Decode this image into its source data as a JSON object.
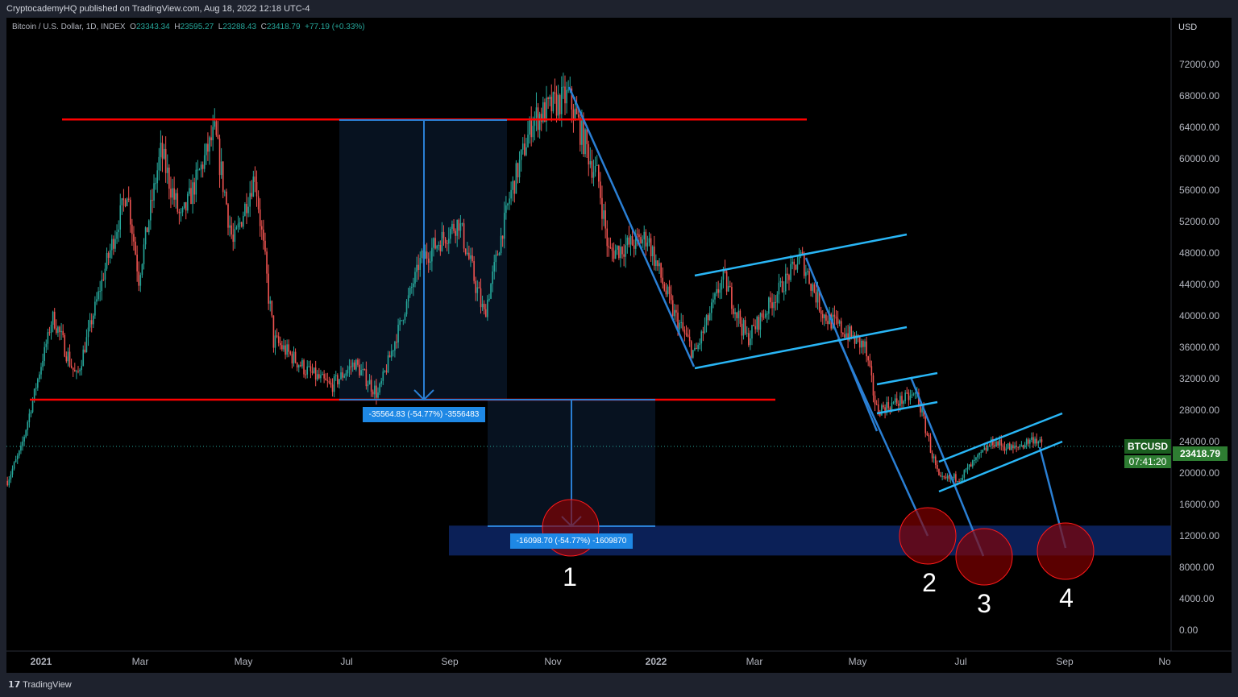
{
  "header": {
    "published": "CryptocademyHQ published on TradingView.com, Aug 18, 2022 12:18 UTC-4"
  },
  "legend": {
    "symbol": "Bitcoin / U.S. Dollar, 1D, INDEX",
    "open_label": "O",
    "open": "23343.34",
    "high_label": "H",
    "high": "23595.27",
    "low_label": "L",
    "low": "23288.43",
    "close_label": "C",
    "close": "23418.79",
    "change": "+77.19 (+0.33%)"
  },
  "price_tag": {
    "symbol": "BTCUSD",
    "price": "23418.79",
    "countdown": "07:41:20"
  },
  "currency": "USD",
  "measures": [
    {
      "label": "-35564.83 (-54.77%) -3556483"
    },
    {
      "label": "-16098.70 (-54.77%) -1609870"
    }
  ],
  "targets": [
    "1",
    "2",
    "3",
    "4"
  ],
  "footer": {
    "brand": "TradingView"
  },
  "colors": {
    "up": "#26a69a",
    "down": "#ef5350",
    "resistance": "#ff0000",
    "trend": "#2a7fd4",
    "channel": "#29b6f6",
    "zone": "#0c2461",
    "target": "#8b0000"
  },
  "chart_data": {
    "type": "candlestick",
    "ylabel": "USD",
    "ylim": [
      0,
      72000
    ],
    "yticks": [
      "72000.00",
      "68000.00",
      "64000.00",
      "60000.00",
      "56000.00",
      "52000.00",
      "48000.00",
      "44000.00",
      "40000.00",
      "36000.00",
      "32000.00",
      "28000.00",
      "24000.00",
      "20000.00",
      "16000.00",
      "12000.00",
      "8000.00",
      "4000.00",
      "0.00"
    ],
    "xticks": [
      "2021",
      "Mar",
      "May",
      "Jul",
      "Sep",
      "Nov",
      "2022",
      "Mar",
      "May",
      "Jul",
      "Sep",
      "No"
    ],
    "close_path": [
      [
        "2020-12-12",
        19000
      ],
      [
        "2020-12-20",
        23000
      ],
      [
        "2021-01-08",
        40000
      ],
      [
        "2021-01-22",
        32000
      ],
      [
        "2021-02-08",
        46000
      ],
      [
        "2021-02-21",
        56000
      ],
      [
        "2021-02-28",
        45000
      ],
      [
        "2021-03-13",
        61000
      ],
      [
        "2021-03-25",
        52000
      ],
      [
        "2021-04-14",
        63500
      ],
      [
        "2021-04-25",
        49000
      ],
      [
        "2021-05-08",
        58000
      ],
      [
        "2021-05-19",
        37000
      ],
      [
        "2021-06-08",
        33000
      ],
      [
        "2021-06-22",
        31000
      ],
      [
        "2021-07-06",
        34000
      ],
      [
        "2021-07-20",
        30000
      ],
      [
        "2021-08-14",
        47000
      ],
      [
        "2021-09-06",
        52000
      ],
      [
        "2021-09-21",
        40000
      ],
      [
        "2021-10-06",
        55000
      ],
      [
        "2021-10-20",
        65000
      ],
      [
        "2021-11-10",
        68000
      ],
      [
        "2021-11-28",
        57000
      ],
      [
        "2021-12-04",
        48000
      ],
      [
        "2021-12-27",
        50000
      ],
      [
        "2022-01-10",
        41000
      ],
      [
        "2022-01-24",
        35000
      ],
      [
        "2022-02-10",
        45000
      ],
      [
        "2022-02-24",
        37000
      ],
      [
        "2022-03-28",
        47500
      ],
      [
        "2022-04-11",
        40000
      ],
      [
        "2022-05-05",
        36000
      ],
      [
        "2022-05-12",
        28000
      ],
      [
        "2022-06-05",
        30000
      ],
      [
        "2022-06-18",
        19000
      ],
      [
        "2022-07-01",
        19500
      ],
      [
        "2022-07-20",
        24000
      ],
      [
        "2022-08-01",
        23000
      ],
      [
        "2022-08-14",
        24500
      ],
      [
        "2022-08-18",
        23418.79
      ]
    ],
    "horizontal_levels": [
      65000,
      29300
    ],
    "target_zone": [
      9500,
      13300
    ]
  }
}
